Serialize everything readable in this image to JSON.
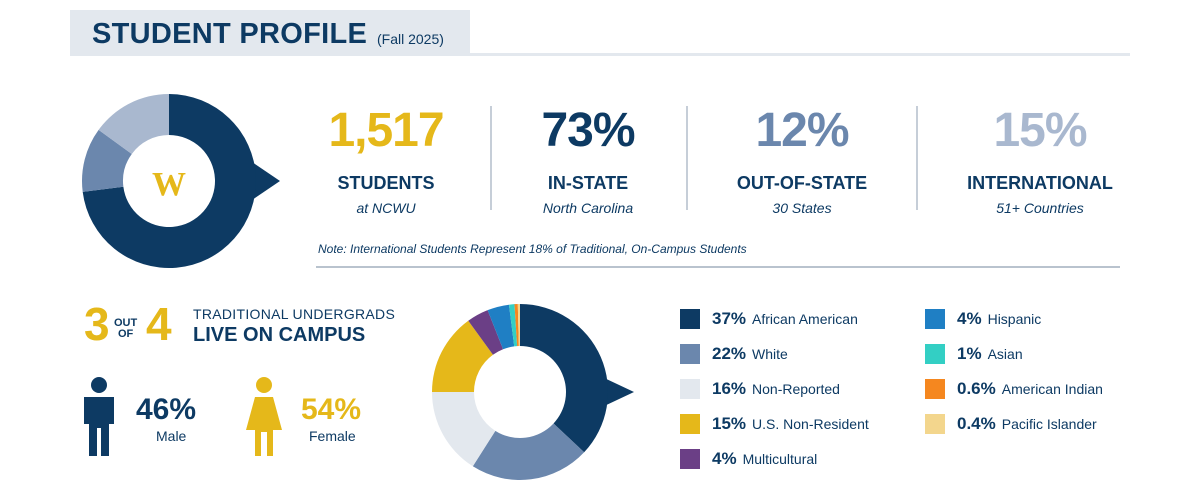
{
  "header": {
    "title": "STUDENT PROFILE",
    "subtitle": "(Fall 2025)"
  },
  "logo_letter": "W",
  "stats": [
    {
      "value": "1,517",
      "label": "STUDENTS",
      "sub": "at NCWU",
      "color": "#e5b81a"
    },
    {
      "value": "73%",
      "label": "IN-STATE",
      "sub": "North Carolina",
      "color": "#0d3a63"
    },
    {
      "value": "12%",
      "label": "OUT-OF-STATE",
      "sub": "30 States",
      "color": "#6b87ad"
    },
    {
      "value": "15%",
      "label": "INTERNATIONAL",
      "sub": "51+ Countries",
      "color": "#a9b8cf"
    }
  ],
  "note": "Note: International Students Represent 18% of Traditional, On-Campus Students",
  "campus": {
    "num1": "3",
    "out": "OUT",
    "of": "OF",
    "num2": "4",
    "line1": "TRADITIONAL UNDERGRADS",
    "line2": "LIVE ON CAMPUS"
  },
  "gender": {
    "male": {
      "pct": "46%",
      "label": "Male",
      "color": "#0d3a63"
    },
    "female": {
      "pct": "54%",
      "label": "Female",
      "color": "#e5b81a"
    }
  },
  "chart_data": [
    {
      "type": "pie",
      "categories": [
        "IN-STATE",
        "OUT-OF-STATE",
        "INTERNATIONAL"
      ],
      "values": [
        73,
        12,
        15
      ],
      "colors": [
        "#0d3a63",
        "#6b87ad",
        "#a9b8cf"
      ]
    },
    {
      "type": "pie",
      "categories": [
        "African American",
        "White",
        "Non-Reported",
        "U.S. Non-Resident",
        "Multicultural",
        "Hispanic",
        "Asian",
        "American Indian",
        "Pacific Islander"
      ],
      "values": [
        37,
        22,
        16,
        15,
        4,
        4,
        1,
        0.6,
        0.4
      ],
      "colors": [
        "#0d3a63",
        "#6b87ad",
        "#e3e8ee",
        "#e5b81a",
        "#6b3f86",
        "#1f7fc4",
        "#33cfc4",
        "#f5871f",
        "#f3d68d"
      ]
    }
  ],
  "legend": [
    {
      "pct": "37%",
      "label": "African American",
      "color": "#0d3a63"
    },
    {
      "pct": "22%",
      "label": "White",
      "color": "#6b87ad"
    },
    {
      "pct": "16%",
      "label": "Non-Reported",
      "color": "#e3e8ee"
    },
    {
      "pct": "15%",
      "label": "U.S. Non-Resident",
      "color": "#e5b81a"
    },
    {
      "pct": "4%",
      "label": "Multicultural",
      "color": "#6b3f86"
    },
    {
      "pct": "4%",
      "label": "Hispanic",
      "color": "#1f7fc4"
    },
    {
      "pct": "1%",
      "label": "Asian",
      "color": "#33cfc4"
    },
    {
      "pct": "0.6%",
      "label": "American Indian",
      "color": "#f5871f"
    },
    {
      "pct": "0.4%",
      "label": "Pacific Islander",
      "color": "#f3d68d"
    }
  ]
}
